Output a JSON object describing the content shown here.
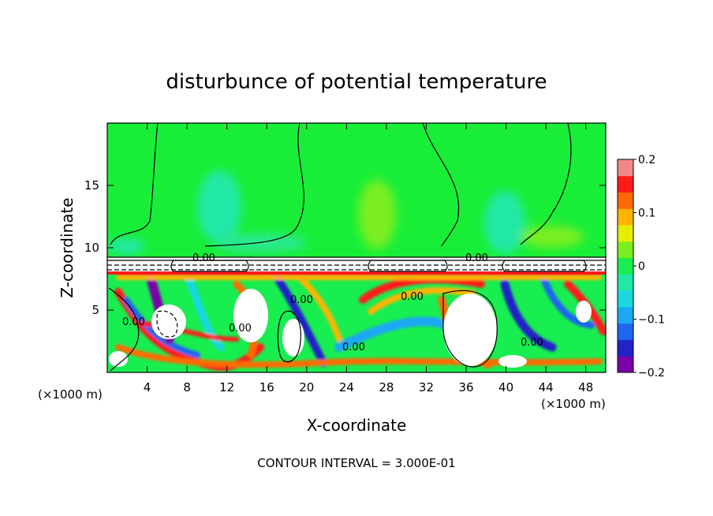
{
  "chart_data": {
    "type": "heatmap",
    "title": "disturbunce of potential temperature",
    "xlabel": "X-coordinate",
    "ylabel": "Z-coordinate",
    "x_unit_label": "(×1000 m)",
    "x_unit_label_right": "(×1000 m)",
    "xlim": [
      0,
      50
    ],
    "ylim": [
      0,
      20
    ],
    "x_ticks": [
      4,
      8,
      12,
      16,
      20,
      24,
      28,
      32,
      36,
      40,
      44,
      48
    ],
    "x_tick_labels": [
      "4",
      "8",
      "12",
      "16",
      "20",
      "24",
      "28",
      "32",
      "36",
      "40",
      "44",
      "48"
    ],
    "y_ticks": [
      5,
      10,
      15
    ],
    "y_tick_labels": [
      "5",
      "10",
      "15"
    ],
    "colorbar": {
      "range": [
        -0.2,
        0.2
      ],
      "ticks": [
        0.2,
        0.1,
        0,
        -0.1,
        -0.2
      ],
      "tick_labels": [
        "0.2",
        "0.1",
        "0",
        "−0.1",
        "−0.2"
      ],
      "colors": [
        "#7a00a8",
        "#2222c8",
        "#1f66ee",
        "#1aa8f2",
        "#19d8e0",
        "#20e8a8",
        "#18ee50",
        "#7aee20",
        "#e6ee00",
        "#ffb400",
        "#ff6a00",
        "#ff1a1a",
        "#f08a8a"
      ]
    },
    "contour_labels": [
      "0.00",
      "0.00",
      "0.00",
      "0.00",
      "0.00",
      "0.00",
      "0.00",
      "0.00"
    ],
    "footer": "CONTOUR INTERVAL = 3.000E-01"
  }
}
